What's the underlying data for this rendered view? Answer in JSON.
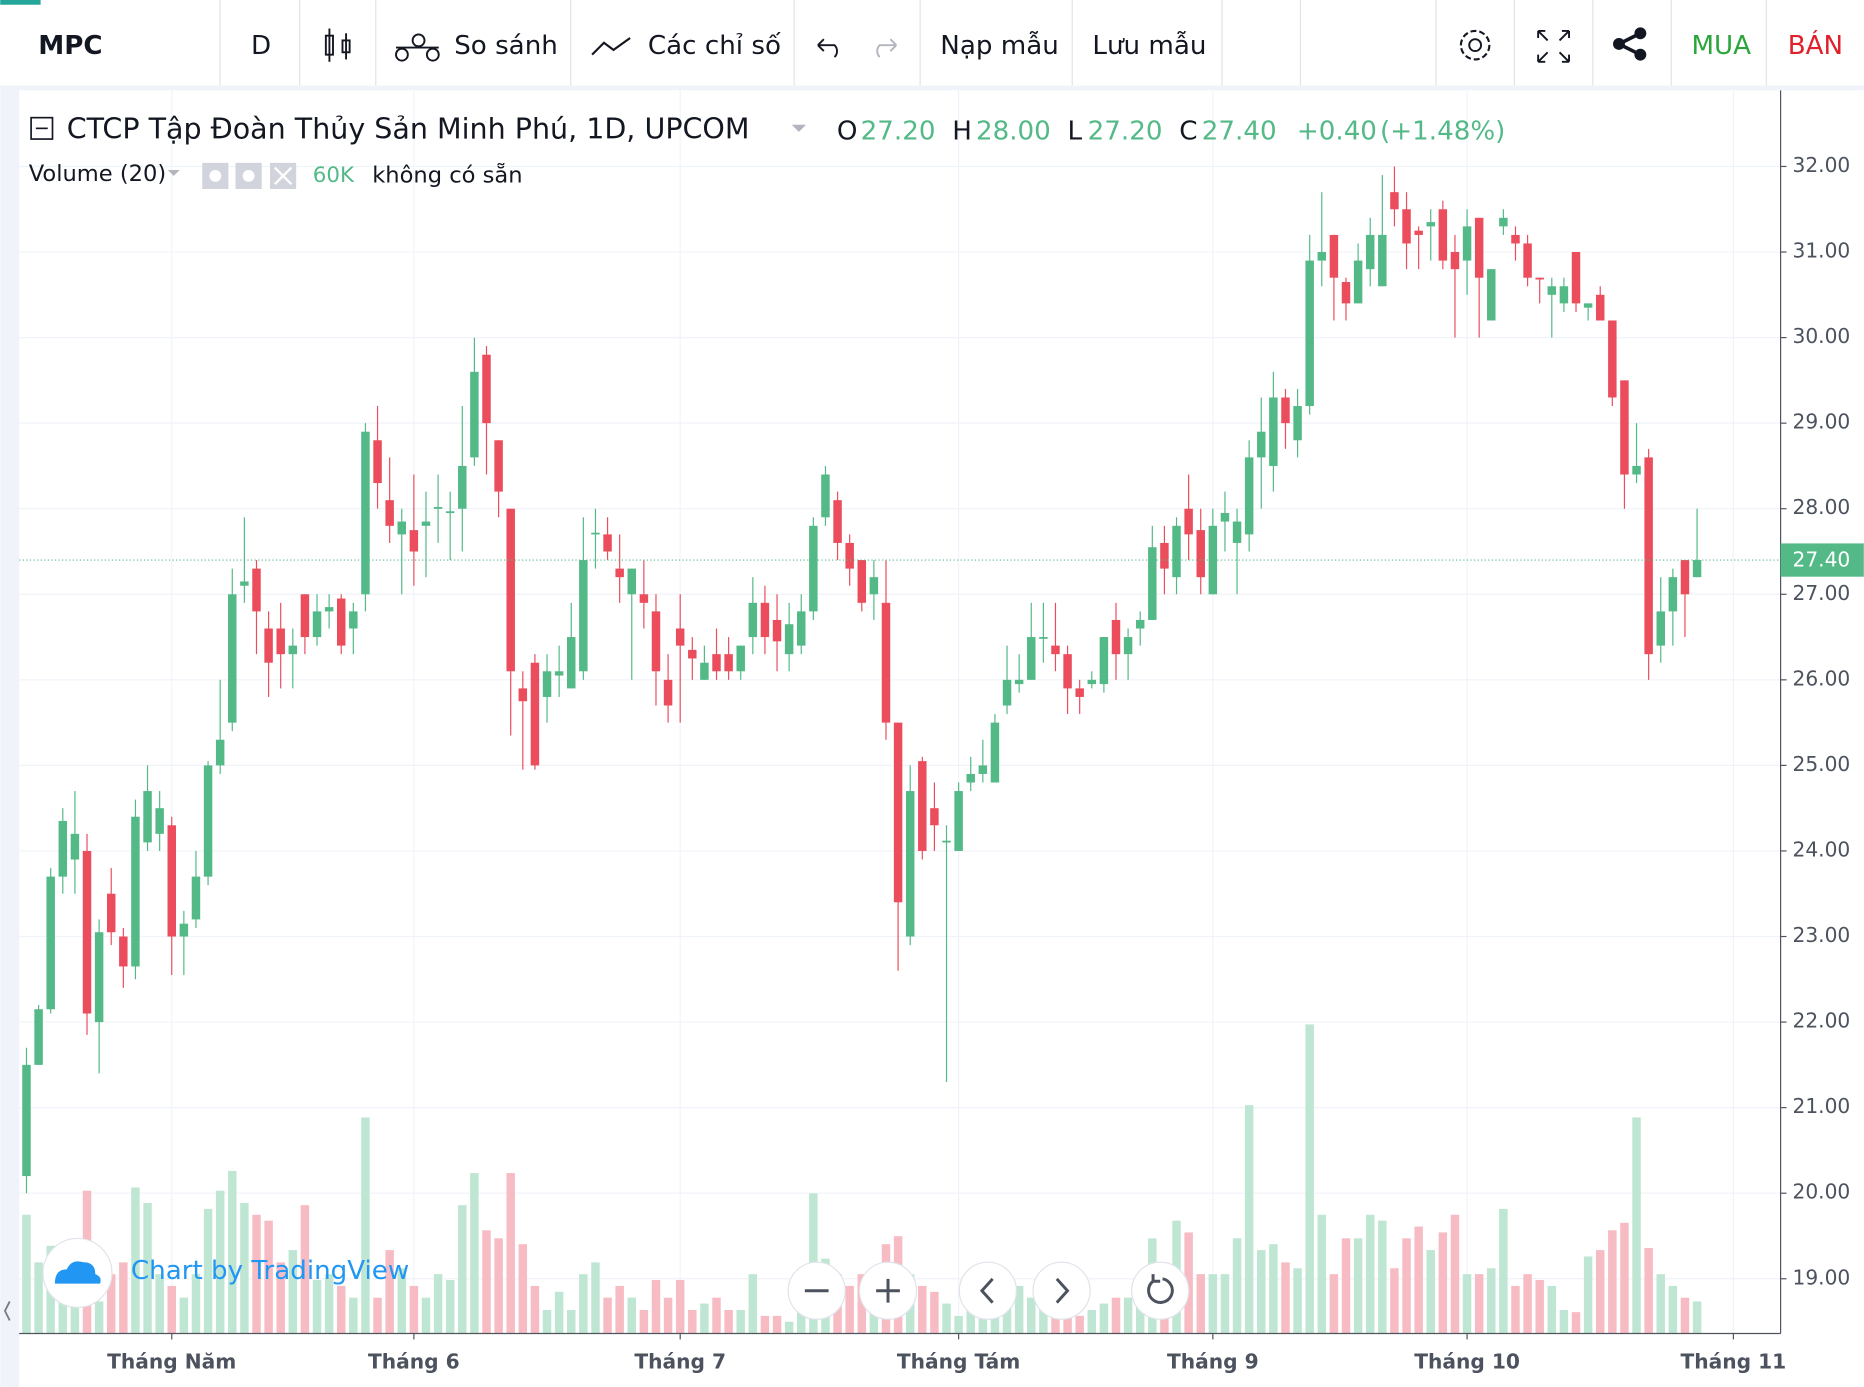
{
  "ui": {
    "symbol": "MPC",
    "interval": "D",
    "compare": "So sánh",
    "indicators": "Các chỉ số",
    "load": "Nạp mẫu",
    "save": "Lưu mẫu",
    "buy": "MUA",
    "sell": "BÁN",
    "watermark": "Chart by TradingView"
  },
  "chart_data": {
    "type": "candlestick",
    "title": "CTCP Tập Đoàn Thủy Sản Minh Phú, 1D, UPCOM",
    "legend": [
      {
        "key": "O",
        "value": 27.2,
        "label": "27.20"
      },
      {
        "key": "H",
        "value": 28.0,
        "label": "28.00"
      },
      {
        "key": "L",
        "value": 27.2,
        "label": "27.20"
      },
      {
        "key": "C",
        "value": 27.4,
        "label": "27.40"
      }
    ],
    "change": {
      "value": 0.4,
      "label": "+0.40"
    },
    "change_pct": {
      "value": 1.48,
      "label": "(+1.48%)"
    },
    "volume_title": "Volume (20)",
    "volume_legend": {
      "value": 60,
      "label": "60K"
    },
    "volume_note": "không có sẵn",
    "up_color": "#53b987",
    "down_color": "#eb4d5c",
    "volume_up_color": "#bfe6d2",
    "volume_down_color": "#f7bcc3",
    "grid": true,
    "xlim": [
      -0.6,
      144.9
    ],
    "ylim": [
      18.36,
      32.89
    ],
    "volume_lim": [
      0,
      1000
    ],
    "yticks": [
      {
        "value": 19,
        "label": "19.00"
      },
      {
        "value": 20,
        "label": "20.00"
      },
      {
        "value": 21,
        "label": "21.00"
      },
      {
        "value": 22,
        "label": "22.00"
      },
      {
        "value": 23,
        "label": "23.00"
      },
      {
        "value": 24,
        "label": "24.00"
      },
      {
        "value": 25,
        "label": "25.00"
      },
      {
        "value": 26,
        "label": "26.00"
      },
      {
        "value": 27,
        "label": "27.00"
      },
      {
        "value": 28,
        "label": "28.00"
      },
      {
        "value": 29,
        "label": "29.00"
      },
      {
        "value": 30,
        "label": "30.00"
      },
      {
        "value": 31,
        "label": "31.00"
      },
      {
        "value": 32,
        "label": "32.00"
      }
    ],
    "xticks": [
      {
        "value": 12,
        "label": "Tháng Năm"
      },
      {
        "value": 32,
        "label": "Tháng 6"
      },
      {
        "value": 54,
        "label": "Tháng 7"
      },
      {
        "value": 77,
        "label": "Tháng Tám"
      },
      {
        "value": 98,
        "label": "Tháng 9"
      },
      {
        "value": 119,
        "label": "Tháng 10"
      },
      {
        "value": 141,
        "label": "Tháng 11"
      }
    ],
    "last_price": {
      "value": 27.4,
      "label": "27.40"
    },
    "open": [
      20.2,
      21.5,
      22.15,
      23.7,
      23.9,
      24.0,
      22.0,
      23.5,
      23.0,
      22.65,
      24.1,
      24.2,
      24.3,
      23.0,
      23.2,
      23.7,
      25.0,
      25.5,
      27.1,
      27.3,
      26.6,
      26.6,
      26.3,
      27.0,
      26.5,
      26.8,
      26.95,
      26.6,
      27.0,
      28.8,
      28.1,
      27.7,
      27.75,
      27.8,
      28.0,
      27.95,
      28.0,
      28.6,
      29.8,
      28.8,
      28.0,
      25.9,
      26.2,
      25.8,
      26.05,
      25.9,
      26.1,
      27.7,
      27.7,
      27.3,
      27.0,
      27.0,
      26.8,
      26.0,
      26.6,
      26.35,
      26.0,
      26.3,
      26.3,
      26.1,
      26.5,
      26.9,
      26.7,
      26.3,
      26.4,
      26.8,
      27.9,
      28.1,
      27.6,
      27.4,
      27.0,
      26.9,
      25.5,
      23.0,
      25.05,
      24.5,
      24.1,
      24.0,
      24.8,
      24.9,
      24.8,
      25.7,
      25.95,
      26.0,
      26.48,
      26.4,
      26.3,
      25.9,
      25.95,
      25.95,
      26.7,
      26.3,
      26.6,
      26.7,
      27.6,
      27.2,
      28.0,
      27.75,
      27.0,
      27.85,
      27.6,
      27.7,
      28.6,
      28.5,
      29.3,
      28.8,
      29.2,
      30.9,
      31.2,
      30.65,
      30.4,
      30.8,
      30.6,
      31.7,
      31.5,
      31.25,
      31.3,
      31.5,
      31.0,
      30.9,
      31.4,
      30.2,
      31.3,
      31.2,
      31.1,
      30.7,
      30.5,
      30.4,
      31.0,
      30.35,
      30.5,
      30.2,
      29.5,
      28.4,
      28.6,
      26.4,
      26.8,
      27.4,
      27.2
    ],
    "high": [
      21.7,
      22.2,
      23.8,
      24.5,
      24.7,
      24.2,
      23.2,
      23.8,
      23.1,
      24.6,
      25.0,
      24.7,
      24.4,
      23.3,
      24.0,
      25.05,
      26.0,
      27.3,
      27.9,
      27.4,
      26.8,
      26.9,
      26.6,
      27.0,
      27.0,
      27.0,
      27.0,
      26.9,
      29.0,
      29.2,
      28.6,
      28.0,
      28.4,
      28.2,
      28.4,
      28.2,
      29.2,
      30.0,
      29.9,
      28.8,
      28.0,
      26.1,
      26.3,
      26.3,
      26.4,
      26.9,
      27.9,
      28.0,
      27.9,
      27.7,
      27.3,
      27.4,
      27.0,
      26.3,
      27.0,
      26.5,
      26.4,
      26.6,
      26.5,
      26.4,
      27.2,
      27.1,
      27.0,
      26.9,
      27.0,
      27.9,
      28.5,
      28.2,
      27.7,
      27.4,
      27.4,
      27.4,
      25.5,
      25.0,
      25.1,
      24.8,
      24.3,
      24.8,
      25.1,
      25.3,
      25.6,
      26.4,
      26.3,
      26.9,
      26.9,
      26.9,
      26.4,
      26.0,
      26.1,
      26.5,
      26.9,
      26.6,
      26.8,
      27.8,
      27.8,
      27.9,
      28.4,
      28.0,
      28.0,
      28.2,
      28.0,
      28.8,
      29.3,
      29.6,
      29.4,
      29.4,
      31.2,
      31.7,
      31.2,
      30.7,
      31.1,
      31.4,
      31.9,
      32.0,
      31.7,
      31.3,
      31.5,
      31.6,
      31.2,
      31.5,
      31.4,
      30.8,
      31.5,
      31.3,
      31.2,
      30.7,
      30.7,
      30.7,
      31.0,
      30.4,
      30.6,
      30.2,
      29.5,
      29.0,
      28.7,
      27.2,
      27.3,
      27.4,
      28.0
    ],
    "low": [
      20.0,
      21.5,
      22.1,
      23.5,
      23.5,
      21.85,
      21.4,
      22.9,
      22.4,
      22.5,
      24.0,
      24.0,
      22.55,
      22.55,
      23.1,
      23.6,
      24.9,
      25.4,
      26.9,
      26.3,
      25.8,
      25.9,
      25.9,
      26.3,
      26.4,
      26.6,
      26.3,
      26.3,
      26.8,
      28.0,
      27.6,
      27.0,
      27.1,
      27.2,
      27.6,
      27.4,
      27.5,
      28.5,
      28.4,
      27.9,
      25.35,
      24.95,
      24.95,
      25.5,
      25.8,
      25.9,
      26.0,
      27.3,
      27.4,
      26.9,
      26.0,
      26.6,
      25.7,
      25.5,
      25.5,
      26.0,
      26.0,
      26.0,
      26.0,
      26.0,
      26.3,
      26.3,
      26.1,
      26.1,
      26.3,
      26.7,
      27.8,
      27.4,
      27.1,
      26.8,
      26.7,
      25.3,
      22.6,
      22.9,
      23.9,
      24.0,
      21.3,
      24.0,
      24.7,
      24.8,
      24.8,
      25.6,
      25.85,
      26.0,
      26.2,
      26.1,
      25.6,
      25.6,
      25.9,
      25.85,
      26.0,
      26.0,
      26.4,
      26.7,
      27.0,
      27.0,
      27.4,
      27.0,
      27.0,
      27.5,
      27.0,
      27.5,
      28.0,
      28.2,
      28.7,
      28.6,
      29.1,
      30.6,
      30.2,
      30.2,
      30.4,
      30.6,
      30.6,
      31.3,
      30.8,
      30.8,
      30.9,
      30.8,
      30.0,
      30.5,
      30.0,
      30.2,
      31.2,
      30.9,
      30.6,
      30.4,
      30.0,
      30.3,
      30.3,
      30.2,
      30.2,
      29.2,
      28.0,
      28.3,
      26.0,
      26.2,
      26.4,
      26.5,
      27.2
    ],
    "close": [
      21.5,
      22.15,
      23.7,
      24.35,
      24.2,
      22.1,
      23.05,
      23.05,
      22.65,
      24.4,
      24.7,
      24.5,
      23.0,
      23.15,
      23.7,
      25.0,
      25.3,
      27.0,
      27.15,
      26.8,
      26.2,
      26.3,
      26.4,
      26.5,
      26.8,
      26.85,
      26.4,
      26.8,
      28.9,
      28.3,
      27.8,
      27.85,
      27.5,
      27.85,
      28.02,
      27.97,
      28.5,
      29.6,
      29.0,
      28.2,
      26.1,
      25.75,
      25.0,
      26.1,
      26.1,
      26.5,
      27.4,
      27.72,
      27.5,
      27.2,
      27.3,
      26.9,
      26.1,
      25.7,
      26.4,
      26.25,
      26.2,
      26.1,
      26.1,
      26.4,
      26.9,
      26.5,
      26.45,
      26.65,
      26.8,
      27.8,
      28.4,
      27.6,
      27.3,
      26.9,
      27.2,
      25.5,
      23.4,
      24.7,
      24.0,
      24.3,
      24.12,
      24.7,
      24.9,
      25.0,
      25.5,
      26.0,
      26.0,
      26.5,
      26.5,
      26.3,
      25.9,
      25.8,
      26.0,
      26.5,
      26.3,
      26.5,
      26.7,
      27.55,
      27.3,
      27.8,
      27.7,
      27.2,
      27.8,
      27.95,
      27.85,
      28.6,
      28.9,
      29.3,
      29.0,
      29.2,
      30.9,
      31.0,
      30.7,
      30.4,
      30.9,
      31.2,
      31.2,
      31.5,
      31.1,
      31.2,
      31.35,
      30.9,
      30.8,
      31.3,
      30.7,
      30.8,
      31.4,
      31.1,
      30.7,
      30.68,
      30.6,
      30.6,
      30.4,
      30.4,
      30.2,
      29.3,
      28.4,
      28.5,
      26.3,
      26.8,
      27.2,
      27.0,
      27.4
    ],
    "volume": [
      222,
      133,
      164,
      127,
      104,
      267,
      60,
      111,
      133,
      273,
      244,
      111,
      89,
      67,
      111,
      233,
      267,
      304,
      244,
      222,
      211,
      133,
      156,
      240,
      100,
      111,
      89,
      67,
      404,
      67,
      156,
      122,
      89,
      67,
      111,
      100,
      240,
      300,
      193,
      178,
      300,
      167,
      89,
      44,
      78,
      44,
      111,
      133,
      67,
      89,
      67,
      44,
      100,
      67,
      100,
      44,
      56,
      67,
      44,
      44,
      111,
      33,
      33,
      22,
      44,
      262,
      140,
      111,
      89,
      111,
      89,
      167,
      182,
      111,
      89,
      78,
      56,
      33,
      100,
      89,
      100,
      111,
      89,
      67,
      67,
      44,
      44,
      33,
      44,
      56,
      67,
      67,
      89,
      178,
      133,
      211,
      189,
      111,
      111,
      111,
      178,
      427,
      156,
      167,
      133,
      122,
      578,
      222,
      111,
      178,
      178,
      222,
      211,
      122,
      178,
      200,
      156,
      189,
      222,
      111,
      111,
      122,
      233,
      89,
      111,
      100,
      89,
      44,
      40,
      144,
      156,
      193,
      207,
      404,
      160,
      111,
      89,
      67,
      60
    ]
  }
}
